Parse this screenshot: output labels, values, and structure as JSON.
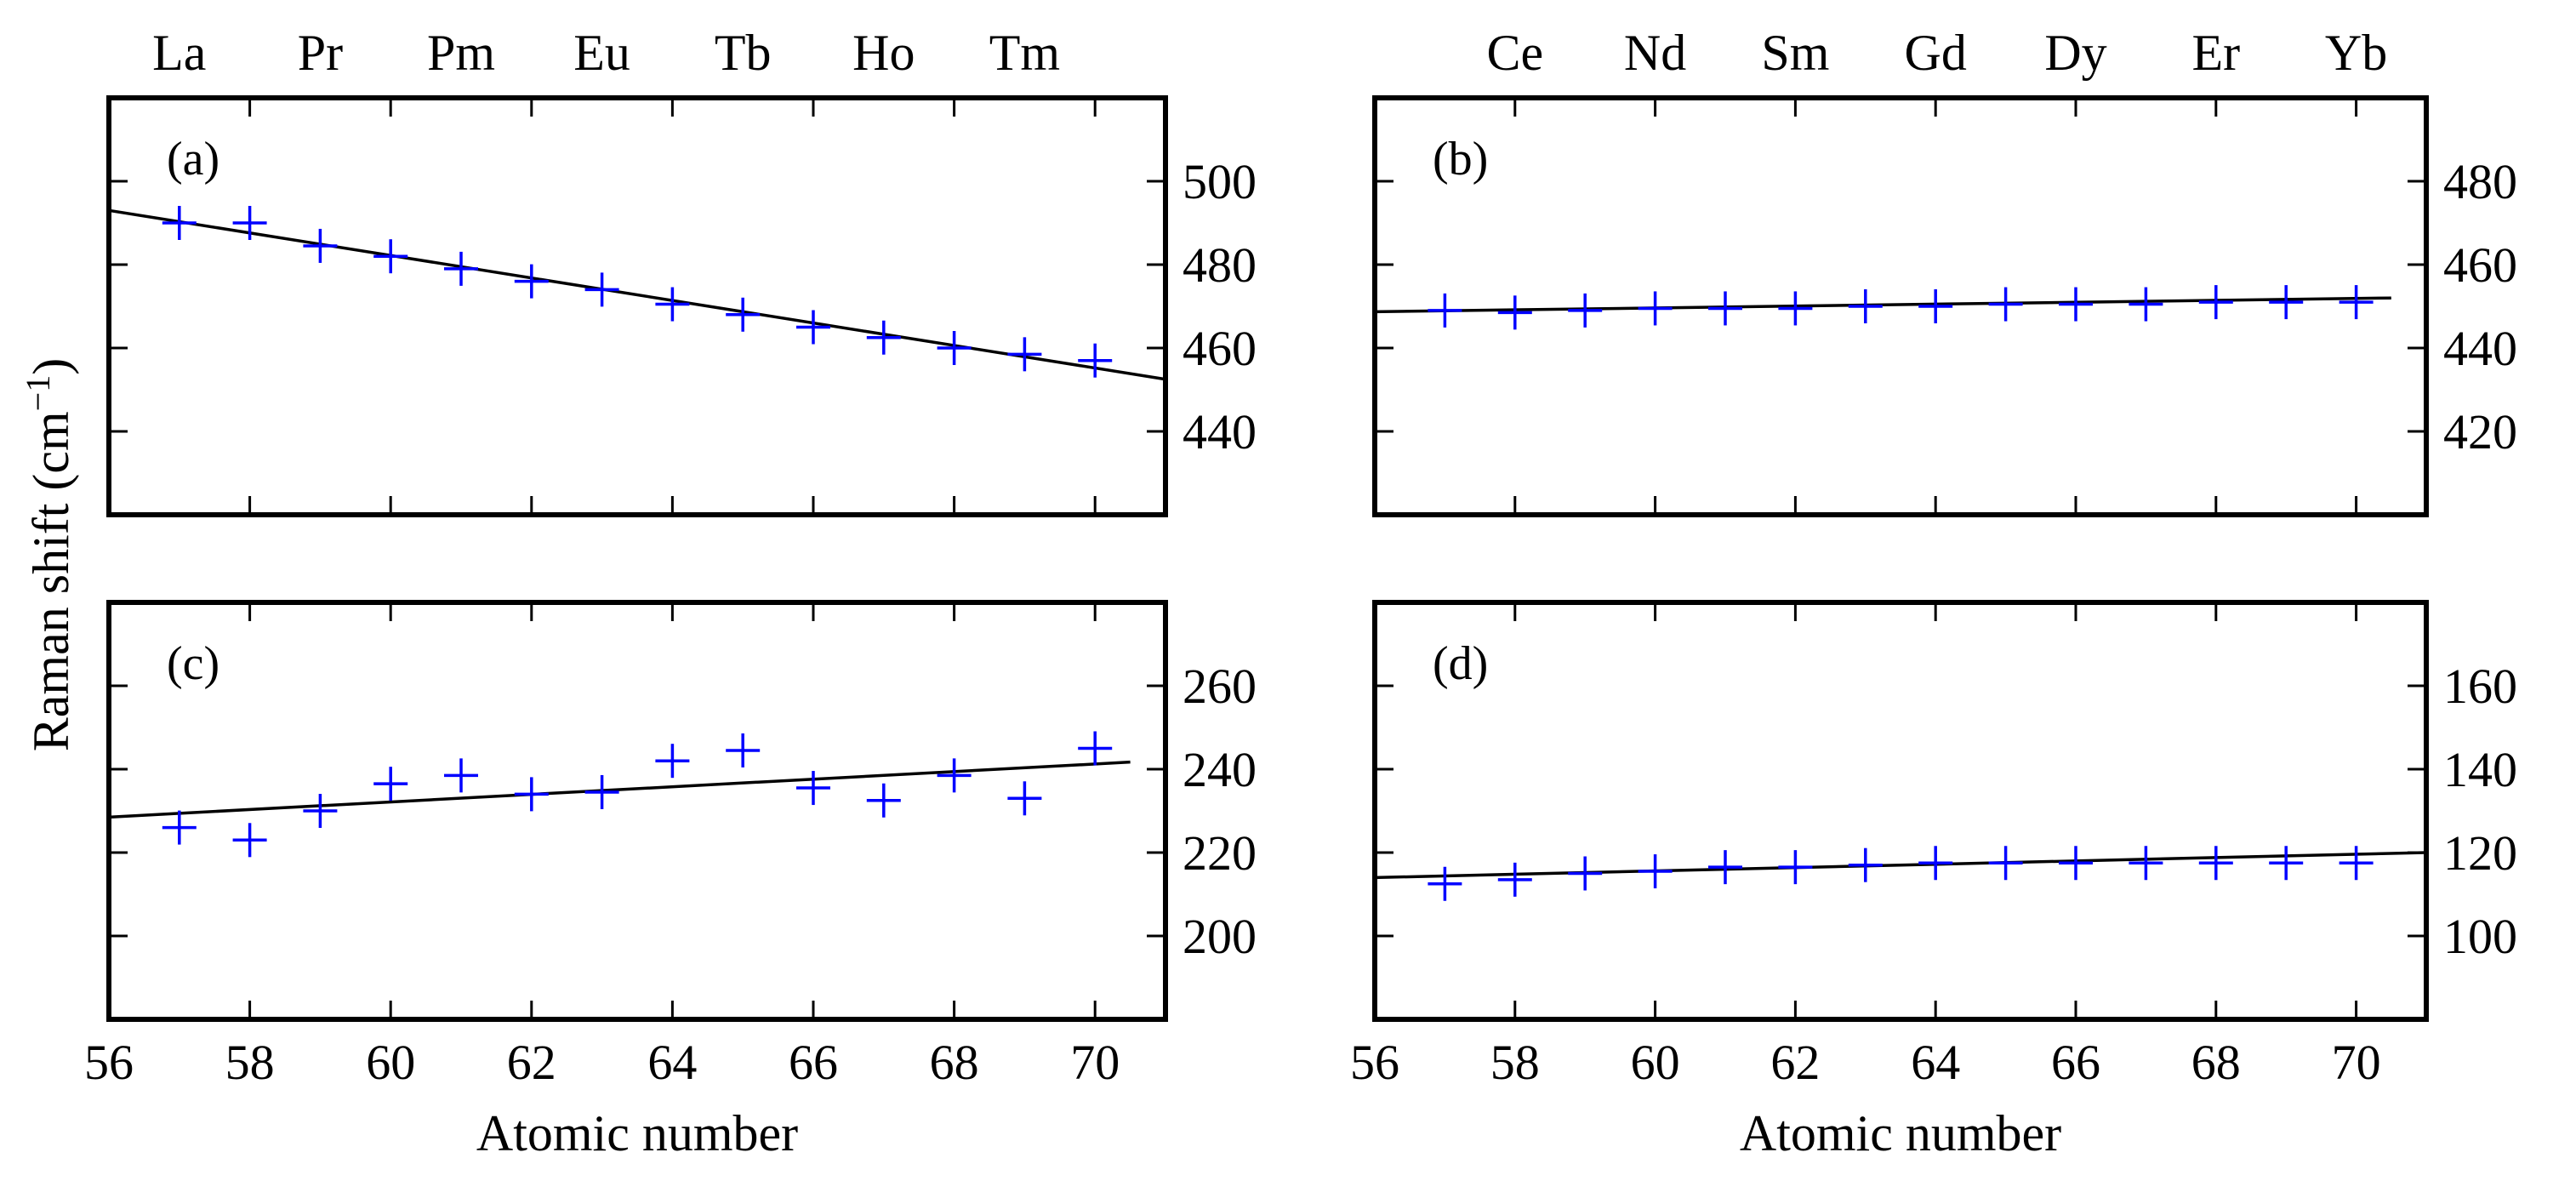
{
  "figure": {
    "ylabel_text": "Raman shift (cm",
    "ylabel_sup": "−1",
    "ylabel_close": ")",
    "xlabel_left": "Atomic number",
    "xlabel_right": "Atomic number"
  },
  "top_elements": {
    "left": [
      "La",
      "Pr",
      "Pm",
      "Eu",
      "Tb",
      "Ho",
      "Tm"
    ],
    "left_z": [
      57,
      59,
      61,
      63,
      65,
      67,
      69
    ],
    "right": [
      "Ce",
      "Nd",
      "Sm",
      "Gd",
      "Dy",
      "Er",
      "Yb"
    ],
    "right_z": [
      58,
      60,
      62,
      64,
      66,
      68,
      70
    ]
  },
  "colors": {
    "marker": "#0000ff",
    "fit_line": "#000000",
    "axes": "#000000"
  },
  "chart_data": [
    {
      "panel": "a",
      "label": "(a)",
      "type": "scatter",
      "x": [
        57,
        58,
        59,
        60,
        61,
        62,
        63,
        64,
        65,
        66,
        67,
        68,
        69,
        70
      ],
      "y": [
        490,
        490,
        484.5,
        482,
        479,
        476,
        474,
        470.5,
        468,
        465,
        462.5,
        460,
        458.5,
        457
      ],
      "fit": {
        "x": [
          56,
          71
        ],
        "y": [
          493,
          452.5
        ]
      },
      "xlim": [
        56,
        71
      ],
      "ylim": [
        420,
        520
      ],
      "yticks": [
        440,
        460,
        480,
        500
      ],
      "xticks": [
        56,
        58,
        60,
        62,
        64,
        66,
        68,
        70
      ],
      "show_xticklabels": false
    },
    {
      "panel": "b",
      "label": "(b)",
      "type": "scatter",
      "x": [
        57,
        58,
        59,
        60,
        61,
        62,
        63,
        64,
        65,
        66,
        67,
        68,
        69,
        70
      ],
      "y": [
        449,
        448.5,
        449,
        449.5,
        449.5,
        449.5,
        450,
        450,
        450.5,
        450.5,
        450.5,
        451,
        451,
        451
      ],
      "fit": {
        "x": [
          56,
          70.5
        ],
        "y": [
          448.7,
          452
        ]
      },
      "xlim": [
        56,
        71
      ],
      "ylim": [
        400,
        500
      ],
      "yticks": [
        420,
        440,
        460,
        480
      ],
      "xticks": [
        56,
        58,
        60,
        62,
        64,
        66,
        68,
        70
      ],
      "show_xticklabels": false
    },
    {
      "panel": "c",
      "label": "(c)",
      "type": "scatter",
      "x": [
        57,
        58,
        59,
        60,
        61,
        62,
        63,
        64,
        65,
        66,
        67,
        68,
        69,
        70
      ],
      "y": [
        226,
        223,
        230,
        236.5,
        238.5,
        234,
        234.5,
        242,
        244.5,
        235.5,
        232.5,
        238.5,
        233,
        245
      ],
      "fit": {
        "x": [
          56,
          70.5
        ],
        "y": [
          228.5,
          241.7
        ]
      },
      "xlim": [
        56,
        71
      ],
      "ylim": [
        180,
        280
      ],
      "yticks": [
        200,
        220,
        240,
        260
      ],
      "xticks": [
        56,
        58,
        60,
        62,
        64,
        66,
        68,
        70
      ],
      "show_xticklabels": true
    },
    {
      "panel": "d",
      "label": "(d)",
      "type": "scatter",
      "x": [
        57,
        58,
        59,
        60,
        61,
        62,
        63,
        64,
        65,
        66,
        67,
        68,
        69,
        70
      ],
      "y": [
        112.5,
        113.5,
        115,
        115.5,
        116.5,
        116.5,
        117,
        117.5,
        117.5,
        117.5,
        117.5,
        117.5,
        117.5,
        117.5
      ],
      "fit": {
        "x": [
          56,
          71
        ],
        "y": [
          114,
          120
        ]
      },
      "xlim": [
        56,
        71
      ],
      "ylim": [
        80,
        180
      ],
      "yticks": [
        100,
        120,
        140,
        160
      ],
      "xticks": [
        56,
        58,
        60,
        62,
        64,
        66,
        68,
        70
      ],
      "show_xticklabels": true
    }
  ]
}
